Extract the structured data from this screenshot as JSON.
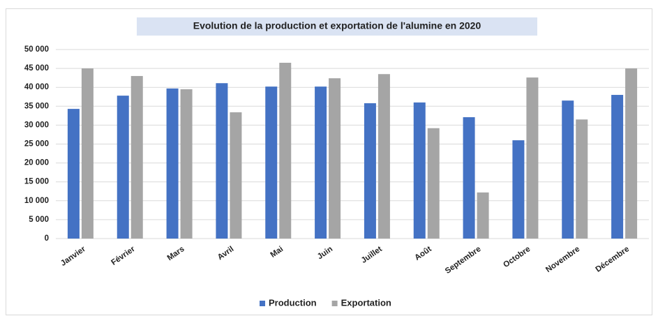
{
  "chart_data": {
    "type": "bar",
    "title": "Evolution de la production et exportation de l'alumine en 2020",
    "categories": [
      "Janvier",
      "Février",
      "Mars",
      "Avril",
      "Mai",
      "Juin",
      "Juillet",
      "Août",
      "Septembre",
      "Octobre",
      "Novembre",
      "Décembre"
    ],
    "series": [
      {
        "name": "Production",
        "color": "#4472c4",
        "values": [
          34300,
          37800,
          39700,
          41100,
          40200,
          40200,
          35800,
          36000,
          32100,
          26000,
          36500,
          38000
        ]
      },
      {
        "name": "Exportation",
        "color": "#a5a5a5",
        "values": [
          45000,
          43000,
          39500,
          33400,
          46500,
          42400,
          43500,
          29200,
          12200,
          42600,
          31500,
          45000
        ]
      }
    ],
    "ylim": [
      0,
      50000
    ],
    "yticks": [
      0,
      {
        "value": 5000,
        "label": "5 000"
      },
      {
        "value": 10000,
        "label": "10 000"
      },
      {
        "value": 15000,
        "label": "15 000"
      },
      {
        "value": 20000,
        "label": "20 000"
      },
      {
        "value": 25000,
        "label": "25 000"
      },
      {
        "value": 30000,
        "label": "30 000"
      },
      {
        "value": 35000,
        "label": "35 000"
      },
      {
        "value": 40000,
        "label": "40 000"
      },
      {
        "value": 45000,
        "label": "45 000"
      },
      {
        "value": 50000,
        "label": "50 000"
      }
    ],
    "grid": true,
    "legend": "bottom"
  }
}
